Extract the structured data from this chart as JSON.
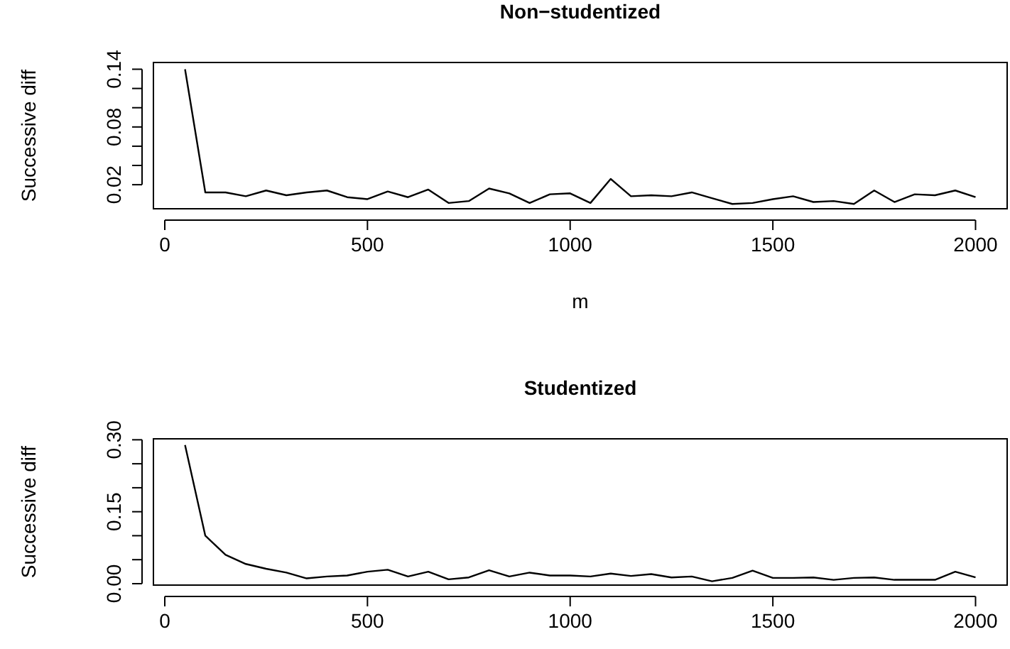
{
  "chart_data": [
    {
      "type": "line",
      "title": "Non−studentized",
      "xlabel": "m",
      "ylabel": "Successive diff",
      "xlim": [
        -28,
        2078
      ],
      "xticks": [
        0,
        500,
        1000,
        1500,
        2000
      ],
      "ylim": [
        -0.005,
        0.147
      ],
      "yticks": [
        0.02,
        {
          "value": 0.04,
          "label": null
        },
        {
          "value": 0.06,
          "label": null
        },
        "0.08",
        {
          "value": 0.1,
          "label": null
        },
        {
          "value": 0.12,
          "label": null
        },
        0.14
      ],
      "x": [
        50,
        100,
        150,
        200,
        250,
        300,
        350,
        400,
        450,
        500,
        550,
        600,
        650,
        700,
        750,
        800,
        850,
        900,
        950,
        1000,
        1050,
        1100,
        1150,
        1200,
        1250,
        1300,
        1350,
        1400,
        1450,
        1500,
        1550,
        1600,
        1650,
        1700,
        1750,
        1800,
        1850,
        1900,
        1950,
        2000
      ],
      "series": [
        {
          "color": "#000000",
          "values": [
            0.14,
            0.012,
            0.012,
            0.008,
            0.014,
            0.009,
            0.012,
            0.014,
            0.007,
            0.005,
            0.013,
            0.007,
            0.015,
            0.001,
            0.003,
            0.016,
            0.011,
            0.001,
            0.01,
            0.011,
            0.001,
            0.026,
            0.008,
            0.009,
            0.008,
            0.012,
            0.006,
            0.0,
            0.001,
            0.005,
            0.008,
            0.002,
            0.003,
            0.0,
            0.014,
            0.002,
            0.01,
            0.009,
            0.014,
            0.007
          ]
        }
      ],
      "grid": false,
      "marker": "none",
      "line_style": "solid"
    },
    {
      "type": "line",
      "title": "Studentized",
      "ylabel": "Successive diff",
      "xlim": [
        -28,
        2078
      ],
      "xticks": [
        0,
        500,
        1000,
        1500,
        2000
      ],
      "ylim": [
        -0.003,
        0.302
      ],
      "yticks": [
        {
          "value": 0,
          "label": "0.00"
        },
        {
          "value": 0.05,
          "label": null
        },
        {
          "value": 0.1,
          "label": null
        },
        0.15,
        {
          "value": 0.2,
          "label": null
        },
        {
          "value": 0.25,
          "label": null
        },
        {
          "value": 0.3,
          "label": "0.30"
        }
      ],
      "x": [
        50,
        100,
        150,
        200,
        250,
        300,
        350,
        400,
        450,
        500,
        550,
        600,
        650,
        700,
        750,
        800,
        850,
        900,
        950,
        1000,
        1050,
        1100,
        1150,
        1200,
        1250,
        1300,
        1350,
        1400,
        1450,
        1500,
        1550,
        1600,
        1650,
        1700,
        1750,
        1800,
        1850,
        1900,
        1950,
        2000
      ],
      "series": [
        {
          "color": "#000000",
          "values": [
            0.289,
            0.1,
            0.06,
            0.041,
            0.031,
            0.023,
            0.011,
            0.015,
            0.017,
            0.025,
            0.029,
            0.015,
            0.025,
            0.009,
            0.013,
            0.028,
            0.015,
            0.023,
            0.017,
            0.017,
            0.015,
            0.021,
            0.016,
            0.02,
            0.013,
            0.015,
            0.005,
            0.012,
            0.027,
            0.012,
            0.012,
            0.013,
            0.008,
            0.012,
            0.013,
            0.008,
            0.008,
            0.008,
            0.025,
            0.013
          ]
        }
      ],
      "grid": false,
      "marker": "none",
      "line_style": "solid"
    }
  ]
}
